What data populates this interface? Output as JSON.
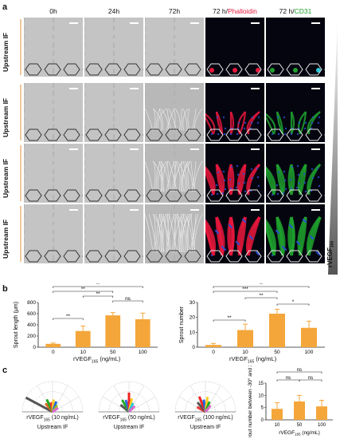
{
  "panel_a": {
    "letter": "a",
    "columns": [
      "0h",
      "24h",
      "72h",
      "72 h/",
      "Phalloidin",
      "72 h/",
      "CD31"
    ],
    "row_label": "Upstream IF",
    "gradient_label": "rVEGF",
    "gradient_sub": "165"
  },
  "panel_b": {
    "letter": "b",
    "x_label_pre": "rVEGF",
    "x_label_sub": "165",
    "x_label_post": " (ng/mL)"
  },
  "panel_c": {
    "letter": "c",
    "polar_labels": [
      {
        "pre": "rVEGF",
        "sub": "165",
        "post": " (10 ng/mL)"
      },
      {
        "pre": "rVEGF",
        "sub": "165",
        "post": " (50 ng/mL)"
      },
      {
        "pre": "rVEGF",
        "sub": "165",
        "post": " (100 ng/mL)"
      }
    ],
    "polar_sublabel": "Upstream IF",
    "small_xlabel_pre": "rVEGF",
    "small_xlabel_sub": "165",
    "small_xlabel_post": " (ng/mL)"
  },
  "colors": {
    "bar": "#f4a63a",
    "phalloidin": "#e8183c",
    "cd31": "#1fa12e",
    "dapi": "#2b4fd8"
  },
  "chart_data": [
    {
      "type": "bar",
      "ylabel": "Sprout length (μm)",
      "categories": [
        "0",
        "10",
        "50",
        "100"
      ],
      "values": [
        60,
        290,
        570,
        500
      ],
      "errors": [
        15,
        90,
        50,
        110
      ],
      "ylim": [
        0,
        800
      ],
      "yticks": [
        0,
        200,
        400,
        600,
        800
      ],
      "significance": [
        "**",
        "**",
        "**",
        "**",
        "ns"
      ]
    },
    {
      "type": "bar",
      "ylabel": "Sprout number",
      "categories": [
        "0",
        "10",
        "50",
        "100"
      ],
      "values": [
        1.5,
        11.5,
        22.5,
        13
      ],
      "errors": [
        1,
        4,
        3,
        4.5
      ],
      "ylim": [
        0,
        30
      ],
      "yticks": [
        0,
        10,
        20,
        30
      ],
      "significance": [
        "**",
        "***",
        "**",
        "**",
        "*"
      ]
    },
    {
      "type": "bar",
      "ylabel": "Sprout number between -30° and 30°",
      "categories": [
        "10",
        "50",
        "100"
      ],
      "values": [
        4.5,
        7.5,
        5.5
      ],
      "errors": [
        2.5,
        2.5,
        2.5
      ],
      "ylim": [
        0,
        15
      ],
      "yticks": [
        0,
        5,
        10,
        15
      ],
      "significance": [
        "ns",
        "ns",
        "ns"
      ]
    }
  ]
}
